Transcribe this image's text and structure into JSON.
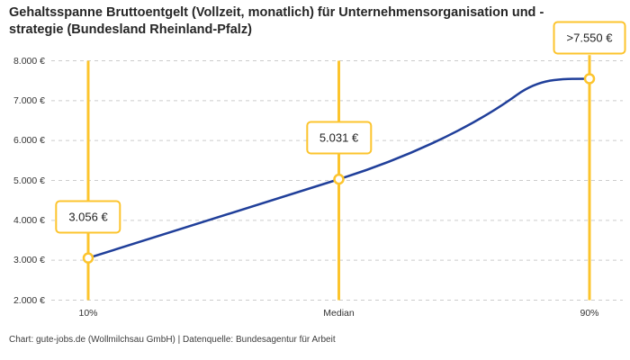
{
  "title": "Gehaltsspanne Bruttoentgelt (Vollzeit, monatlich) für Unternehmensorganisation und -strategie (Bundesland Rheinland-Pfalz)",
  "footer": "Chart: gute-jobs.de (Wollmilchsau GmbH) | Datenquelle: Bundesagentur für Arbeit",
  "chart_data": {
    "type": "line",
    "title": "Gehaltsspanne Bruttoentgelt (Vollzeit, monatlich) für Unternehmensorganisation und -strategie (Bundesland Rheinland-Pfalz)",
    "xlabel": "",
    "ylabel": "",
    "ylim": [
      2000,
      8000
    ],
    "grid": "horizontal-dashed",
    "legend": "none",
    "categories": [
      "10%",
      "Median",
      "90%"
    ],
    "points": [
      {
        "label": "10%",
        "percentile": 10,
        "value": 3056,
        "display": "3.056 €"
      },
      {
        "label": "Median",
        "percentile": 50,
        "value": 5031,
        "display": "5.031 €"
      },
      {
        "label": "90%",
        "percentile": 90,
        "value": 7550,
        "display": ">7.550 €"
      }
    ],
    "y_ticks": [
      {
        "value": 8000,
        "label": "8.000 €"
      },
      {
        "value": 7000,
        "label": "7.000 €"
      },
      {
        "value": 6000,
        "label": "6.000 €"
      },
      {
        "value": 5000,
        "label": "5.000 €"
      },
      {
        "value": 4000,
        "label": "4.000 €"
      },
      {
        "value": 3000,
        "label": "3.000 €"
      },
      {
        "value": 2000,
        "label": "2.000 €"
      }
    ],
    "colors": {
      "line": "#203f9a",
      "marker": "#fcc42d",
      "marker_fill": "#ffffff",
      "grid": "#cccccc",
      "axis_text": "#333333",
      "title_text": "#262626",
      "background": "#ffffff"
    }
  }
}
